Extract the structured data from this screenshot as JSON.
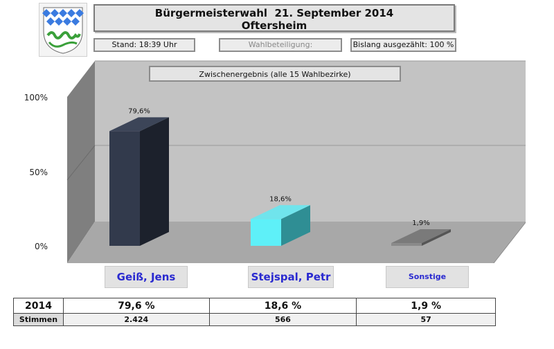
{
  "header": {
    "title": "Bürgermeisterwahl  21. September 2014",
    "subtitle": "Oftersheim",
    "crest_icon": "municipal-coat-of-arms"
  },
  "info": {
    "stand": "Stand: 18:39 Uhr",
    "wahlbeteiligung": "Wahlbeteiligung:",
    "ausgezaehlt": "Bislang ausgezählt: 100 %"
  },
  "chart_data": {
    "type": "bar",
    "title": "Zwischenergebnis (alle 15 Wahlbezirke)",
    "categories": [
      "Geiß, Jens",
      "Stejspal, Petr",
      "Sonstige"
    ],
    "values": [
      79.6,
      18.6,
      1.9
    ],
    "value_labels": [
      "79,6%",
      "18,6%",
      "1,9%"
    ],
    "yticks": [
      "0%",
      "50%",
      "100%"
    ],
    "ylim": [
      0,
      100
    ],
    "grid": true,
    "colors": [
      "#2c3444",
      "#5ad8e0",
      "#8a8a8a"
    ]
  },
  "table": {
    "rows": [
      {
        "label": "2014",
        "values": [
          "79,6 %",
          "18,6 %",
          "1,9 %"
        ]
      },
      {
        "label": "Stimmen",
        "values": [
          "2.424",
          "566",
          "57"
        ]
      }
    ]
  }
}
